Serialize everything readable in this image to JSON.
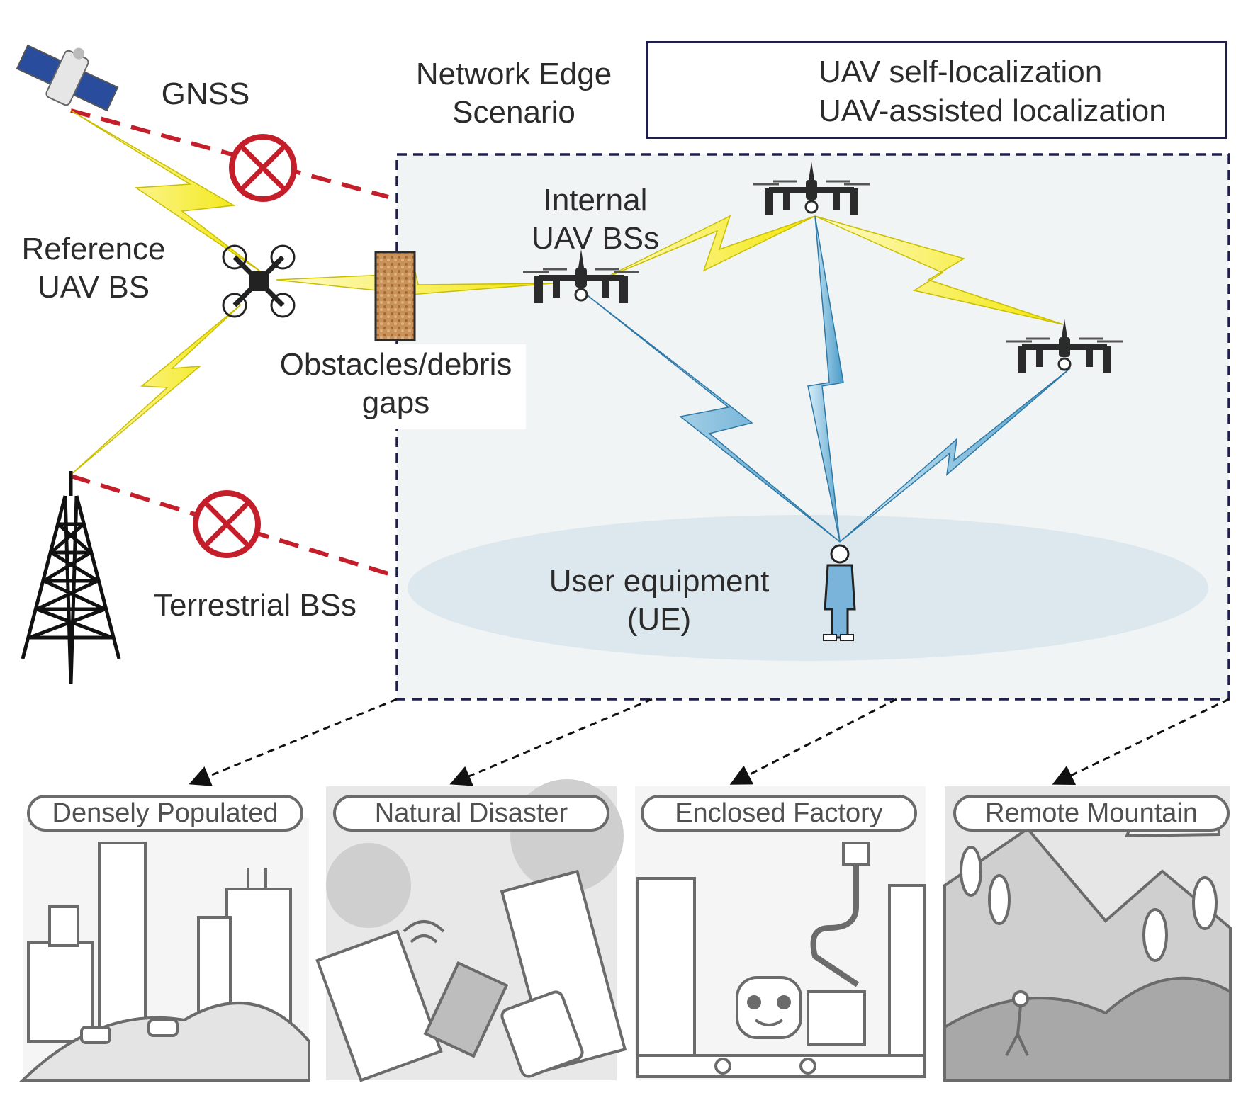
{
  "title": {
    "line1": "Network Edge",
    "line2": "Scenario"
  },
  "legend": {
    "self_localization": "UAV self-localization",
    "assisted_localization": "UAV-assisted localization",
    "self_color": "#f2e600",
    "assisted_color": "#4a9bc9"
  },
  "labels": {
    "gnss": "GNSS",
    "reference_uav": {
      "line1": "Reference",
      "line2": "UAV BS"
    },
    "obstacles": {
      "line1": "Obstacles/debris",
      "line2": "gaps"
    },
    "internal_uav": {
      "line1": "Internal",
      "line2": "UAV BSs"
    },
    "terrestrial": "Terrestrial BSs",
    "user_equipment": {
      "line1": "User equipment",
      "line2": "(UE)"
    }
  },
  "scenarios": [
    {
      "label": "Densely Populated",
      "icon": "city-icon"
    },
    {
      "label": "Natural Disaster",
      "icon": "disaster-icon"
    },
    {
      "label": "Enclosed Factory",
      "icon": "factory-icon"
    },
    {
      "label": "Remote Mountain",
      "icon": "mountain-icon"
    }
  ],
  "colors": {
    "blocked_link": "#c41e2a",
    "scenario_border": "#1f1f4d",
    "scenario_fill": "#f1f4f5",
    "ue_area": "#dce8ee"
  }
}
